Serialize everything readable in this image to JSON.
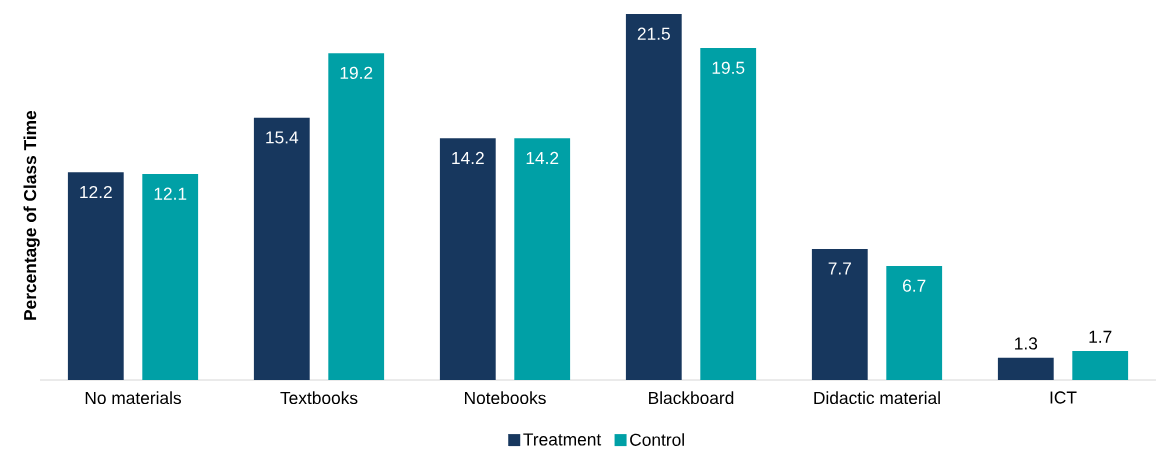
{
  "chart_data": {
    "type": "bar",
    "ylabel": "Percentage of Class Time",
    "categories": [
      "No materials",
      "Textbooks",
      "Notebooks",
      "Blackboard",
      "Didactic material",
      "ICT"
    ],
    "series": [
      {
        "name": "Treatment",
        "color": "#17375e",
        "values": [
          12.2,
          15.4,
          14.2,
          21.5,
          7.7,
          1.3
        ]
      },
      {
        "name": "Control",
        "color": "#00a0a6",
        "values": [
          12.1,
          19.2,
          14.2,
          19.5,
          6.7,
          1.7
        ]
      }
    ],
    "data_labels": true,
    "legend": "bottom"
  }
}
